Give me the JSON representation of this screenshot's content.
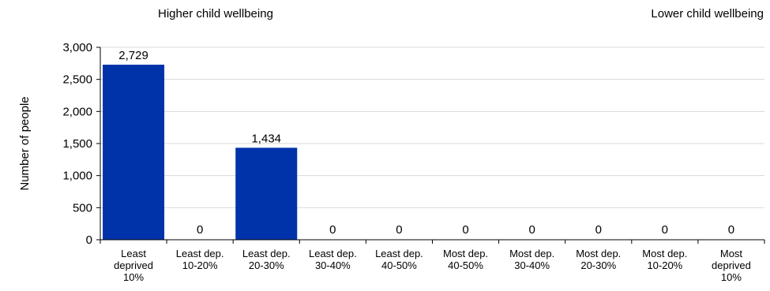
{
  "chart_data": {
    "type": "bar",
    "title": "",
    "xlabel": "",
    "ylabel": "Number of people",
    "ylim": [
      0,
      3000
    ],
    "yticks": [
      "0",
      "500",
      "1,000",
      "1,500",
      "2,000",
      "2,500",
      "3,000"
    ],
    "ytick_values": [
      0,
      500,
      1000,
      1500,
      2000,
      2500,
      3000
    ],
    "grid": true,
    "legend": "none",
    "bar_color": "#0033AA",
    "categories": [
      [
        "Least",
        "deprived",
        "10%"
      ],
      [
        "Least dep.",
        "10-20%"
      ],
      [
        "Least dep.",
        "20-30%"
      ],
      [
        "Least dep.",
        "30-40%"
      ],
      [
        "Least dep.",
        "40-50%"
      ],
      [
        "Most dep.",
        "40-50%"
      ],
      [
        "Most dep.",
        "30-40%"
      ],
      [
        "Most dep.",
        "20-30%"
      ],
      [
        "Most dep.",
        "10-20%"
      ],
      [
        "Most",
        "deprived",
        "10%"
      ]
    ],
    "values": [
      2729,
      0,
      1434,
      0,
      0,
      0,
      0,
      0,
      0,
      0
    ],
    "value_labels": [
      "2,729",
      "0",
      "1,434",
      "0",
      "0",
      "0",
      "0",
      "0",
      "0",
      "0"
    ],
    "annotations": {
      "left": "Higher child wellbeing",
      "right": "Lower child wellbeing"
    }
  }
}
